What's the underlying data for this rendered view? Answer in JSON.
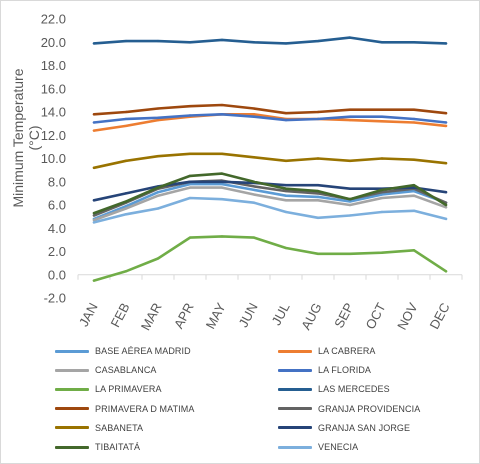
{
  "chart_data": {
    "type": "line",
    "title": "",
    "xlabel": "",
    "ylabel": "Minimum Temperature (°C)",
    "categories": [
      "JAN",
      "FEB",
      "MAR",
      "APR",
      "MAY",
      "JUN",
      "JUL",
      "AUG",
      "SEP",
      "OCT",
      "NOV",
      "DEC"
    ],
    "ylim": [
      -2.0,
      22.0
    ],
    "yticks": [
      "-2.0",
      "0.0",
      "2.0",
      "4.0",
      "6.0",
      "8.0",
      "10.0",
      "12.0",
      "14.0",
      "16.0",
      "18.0",
      "20.0",
      "22.0"
    ],
    "grid": false,
    "legend_position": "bottom",
    "series": [
      {
        "name": "BASE AÉREA MADRID",
        "color": "#5b9bd5",
        "values": [
          4.8,
          5.9,
          7.1,
          7.8,
          7.8,
          7.3,
          6.8,
          6.7,
          6.3,
          6.9,
          7.2,
          6.2
        ]
      },
      {
        "name": "LA CABRERA",
        "color": "#ed7d31",
        "values": [
          12.4,
          12.8,
          13.3,
          13.6,
          13.8,
          13.8,
          13.4,
          13.4,
          13.3,
          13.2,
          13.1,
          12.8
        ]
      },
      {
        "name": "CASABLANCA",
        "color": "#a5a5a5",
        "values": [
          4.7,
          5.7,
          6.8,
          7.5,
          7.5,
          6.9,
          6.4,
          6.4,
          6.0,
          6.6,
          6.8,
          5.8
        ]
      },
      {
        "name": "LA FLORIDA",
        "color": "#4472c4",
        "values": [
          13.1,
          13.4,
          13.5,
          13.7,
          13.8,
          13.6,
          13.3,
          13.4,
          13.6,
          13.6,
          13.4,
          13.1
        ]
      },
      {
        "name": "LA PRIMAVERA",
        "color": "#70ad47",
        "values": [
          -0.5,
          0.3,
          1.4,
          3.2,
          3.3,
          3.2,
          2.3,
          1.8,
          1.8,
          1.9,
          2.1,
          0.3
        ]
      },
      {
        "name": "LAS MERCEDES",
        "color": "#255e91",
        "values": [
          19.9,
          20.1,
          20.1,
          20.0,
          20.2,
          20.0,
          19.9,
          20.1,
          20.4,
          20.0,
          20.0,
          19.9
        ]
      },
      {
        "name": "PRIMAVERA D MATIMA",
        "color": "#9e480e",
        "values": [
          13.8,
          14.0,
          14.3,
          14.5,
          14.6,
          14.3,
          13.9,
          14.0,
          14.2,
          14.2,
          14.2,
          13.9
        ]
      },
      {
        "name": "GRANJA PROVIDENCIA",
        "color": "#636363",
        "values": [
          5.1,
          6.2,
          7.4,
          8.0,
          8.1,
          7.6,
          7.2,
          7.0,
          6.5,
          7.1,
          7.4,
          6.2
        ]
      },
      {
        "name": "SABANETA",
        "color": "#997300",
        "values": [
          9.2,
          9.8,
          10.2,
          10.4,
          10.4,
          10.1,
          9.8,
          10.0,
          9.8,
          10.0,
          9.9,
          9.6
        ]
      },
      {
        "name": "GRANJA SAN JORGE",
        "color": "#264478",
        "values": [
          6.4,
          7.0,
          7.6,
          8.0,
          8.0,
          7.9,
          7.7,
          7.7,
          7.4,
          7.4,
          7.5,
          7.1
        ]
      },
      {
        "name": "TIBAITATÁ",
        "color": "#43682b",
        "values": [
          5.3,
          6.3,
          7.5,
          8.5,
          8.7,
          8.0,
          7.4,
          7.2,
          6.5,
          7.3,
          7.7,
          6.0
        ]
      },
      {
        "name": "VENECIA",
        "color": "#7cafdd",
        "values": [
          4.5,
          5.2,
          5.7,
          6.6,
          6.5,
          6.2,
          5.4,
          4.9,
          5.1,
          5.4,
          5.5,
          4.8
        ]
      }
    ]
  }
}
